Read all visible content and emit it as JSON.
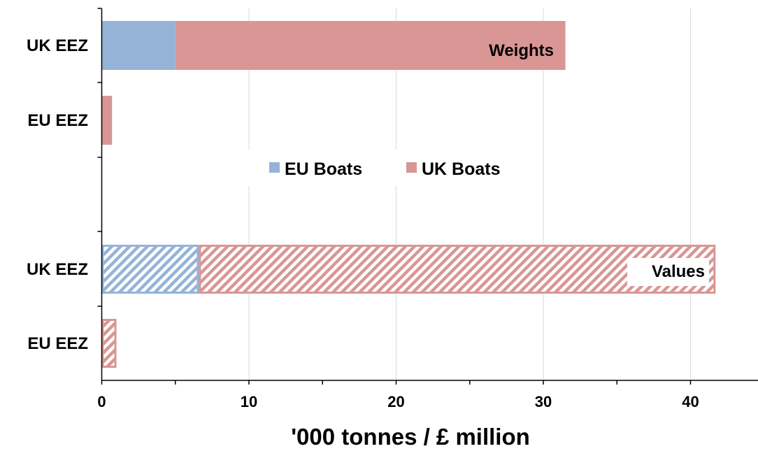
{
  "chart_data": {
    "type": "bar",
    "orientation": "horizontal",
    "stacked": true,
    "xlabel": "'000 tonnes / £ million",
    "xlim": [
      0,
      44
    ],
    "x_ticks": [
      "0",
      "10",
      "20",
      "30",
      "40"
    ],
    "grid": "vertical",
    "legend": {
      "placement": "center",
      "entries": [
        "EU Boats",
        "UK Boats"
      ]
    },
    "colors": {
      "EU Boats": "#95b3d7",
      "UK Boats": "#d99694"
    },
    "groups": [
      {
        "label": "Weights",
        "fill": "solid",
        "categories": [
          "UK EEZ",
          "EU EEZ"
        ],
        "series": [
          {
            "name": "EU Boats",
            "values": [
              5.0,
              0
            ]
          },
          {
            "name": "UK Boats",
            "values": [
              26.5,
              0.7
            ]
          }
        ]
      },
      {
        "label": "Values",
        "fill": "hatched",
        "categories": [
          "UK EEZ",
          "EU EEZ"
        ],
        "series": [
          {
            "name": "EU Boats",
            "values": [
              6.6,
              0
            ]
          },
          {
            "name": "UK Boats",
            "values": [
              35.1,
              1.0
            ]
          }
        ]
      }
    ]
  }
}
